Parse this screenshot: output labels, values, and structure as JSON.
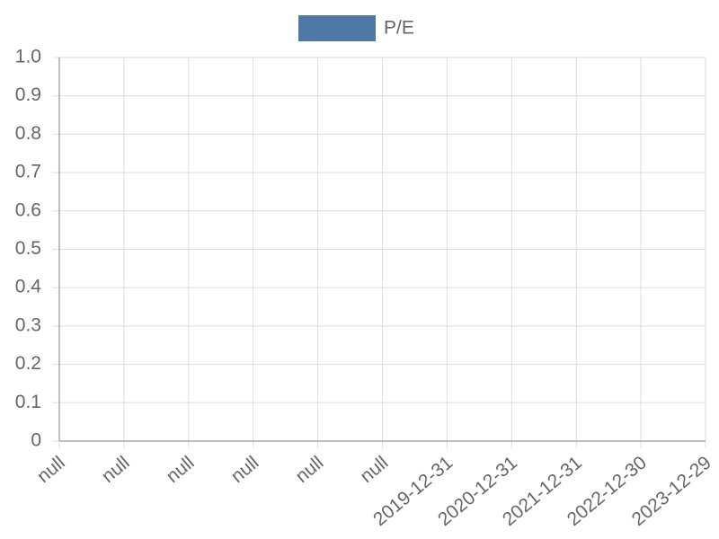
{
  "chart_data": {
    "type": "line",
    "categories": [
      "null",
      "null",
      "null",
      "null",
      "null",
      "null",
      "2019-12-31",
      "2020-12-31",
      "2021-12-31",
      "2022-12-30",
      "2023-12-29"
    ],
    "series": [
      {
        "name": "P/E",
        "color": "#4e79a7",
        "values": [
          null,
          null,
          null,
          null,
          null,
          null,
          null,
          null,
          null,
          null,
          null
        ]
      }
    ],
    "ylim": [
      0,
      1
    ],
    "yticks": [
      0,
      0.1,
      0.2,
      0.3,
      0.4,
      0.5,
      0.6,
      0.7,
      0.8,
      0.9,
      {
        "value": 1,
        "label": "1.0"
      }
    ],
    "grid": true,
    "legend": "top"
  }
}
